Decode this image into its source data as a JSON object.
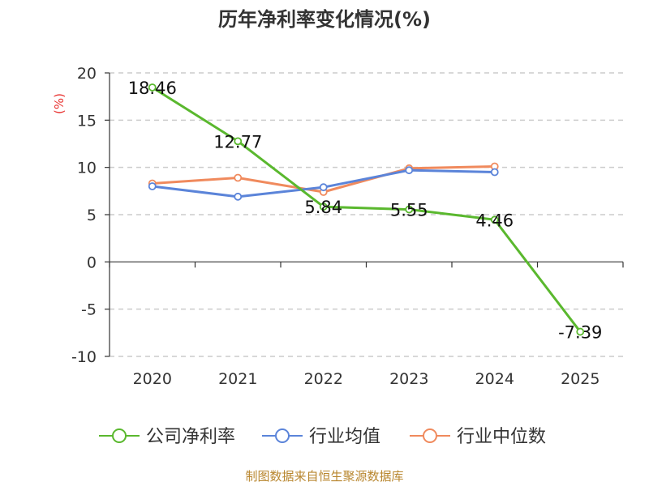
{
  "chart_data": {
    "type": "line",
    "title": "历年净利率变化情况(%)",
    "ylabel": "(%)",
    "categories": [
      "2020",
      "2021",
      "2022",
      "2023",
      "2024",
      "2025"
    ],
    "ylim": [
      -10,
      20
    ],
    "yticks": [
      20,
      15,
      10,
      5,
      0,
      -5,
      -10
    ],
    "grid": true,
    "legend_position": "bottom",
    "series": [
      {
        "name": "公司净利率",
        "color": "#5ab82e",
        "values": [
          18.46,
          12.77,
          5.84,
          5.55,
          4.46,
          -7.39
        ],
        "labels": [
          "18.46",
          "12.77",
          "5.84",
          "5.55",
          "4.46",
          "-7.39"
        ]
      },
      {
        "name": "行业均值",
        "color": "#5b84d9",
        "values": [
          8.0,
          6.9,
          7.9,
          9.7,
          9.5,
          null
        ]
      },
      {
        "name": "行业中位数",
        "color": "#f08a5d",
        "values": [
          8.3,
          8.9,
          7.4,
          9.9,
          10.1,
          null
        ]
      }
    ]
  },
  "source_note": "制图数据来自恒生聚源数据库"
}
